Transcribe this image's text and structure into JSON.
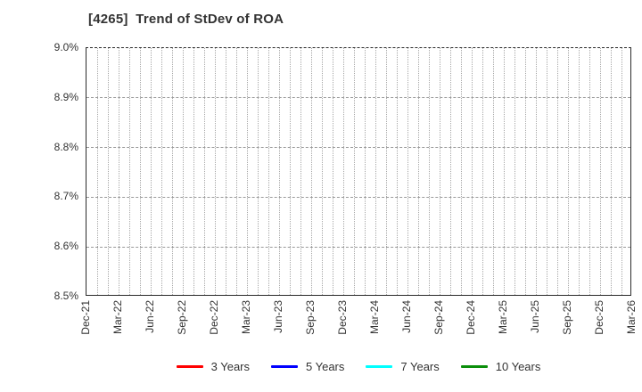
{
  "chart": {
    "title": "[4265]  Trend of StDev of ROA"
  },
  "chart_data": {
    "type": "line",
    "title": "[4265]  Trend of StDev of ROA",
    "x_labels": [
      "Dec-21",
      "Mar-22",
      "Jun-22",
      "Sep-22",
      "Dec-22",
      "Mar-23",
      "Jun-23",
      "Sep-23",
      "Dec-23",
      "Mar-24",
      "Jun-24",
      "Sep-24",
      "Dec-24",
      "Mar-25",
      "Jun-25",
      "Sep-25",
      "Dec-25",
      "Mar-26"
    ],
    "y_tick_labels": [
      "9.0%",
      "8.9%",
      "8.8%",
      "8.7%",
      "8.6%",
      "8.5%"
    ],
    "ylim": [
      8.5,
      9.0
    ],
    "y_unit": "%",
    "grid": true,
    "minor_vertical_gridlines_per_label_interval": 3,
    "legend_position": "bottom",
    "series": [
      {
        "name": "3 Years",
        "color": "#ff0000",
        "values": []
      },
      {
        "name": "5 Years",
        "color": "#0000ff",
        "values": []
      },
      {
        "name": "7 Years",
        "color": "#00ffff",
        "values": []
      },
      {
        "name": "10 Years",
        "color": "#0b8f0b",
        "values": []
      }
    ]
  }
}
